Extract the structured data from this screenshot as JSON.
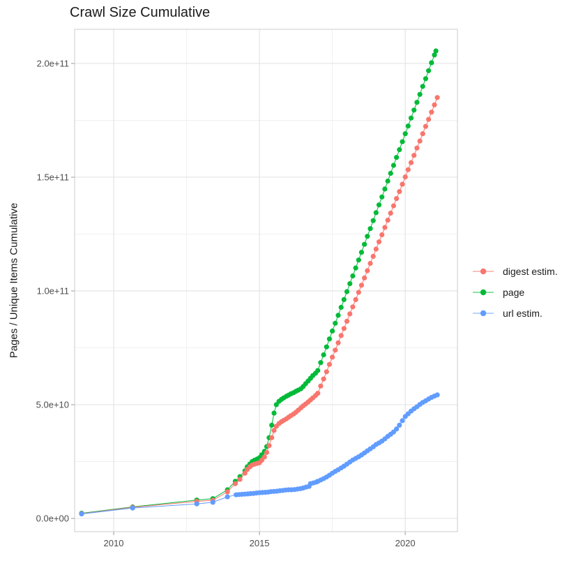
{
  "title": "Crawl Size Cumulative",
  "legend": {
    "items": [
      {
        "label": "digest estim.",
        "color": "#F8766D"
      },
      {
        "label": "page",
        "color": "#00BA38"
      },
      {
        "label": "url estim.",
        "color": "#619CFF"
      }
    ]
  },
  "axes": {
    "y": {
      "label": "Pages / Unique Items Cumulative",
      "ticks": [
        {
          "label": "0.0e+00",
          "value_billions": 0
        },
        {
          "label": "5.0e+10",
          "value_billions": 50
        },
        {
          "label": "1.0e+11",
          "value_billions": 100
        },
        {
          "label": "1.5e+11",
          "value_billions": 150
        },
        {
          "label": "2.0e+11",
          "value_billions": 200
        }
      ],
      "minor_billions": [
        25,
        75,
        125,
        175
      ]
    },
    "x": {
      "ticks": [
        {
          "label": "2010",
          "value": 2010
        },
        {
          "label": "2015",
          "value": 2015
        },
        {
          "label": "2020",
          "value": 2020
        }
      ],
      "minor_values": [
        2012.5,
        2017.5
      ]
    }
  },
  "style": {
    "grid_major_color": "#e4e4e4",
    "grid_minor_color": "#ededed",
    "panel_border_color": "#cccccc",
    "tick_mark_color": "#b3b3b3",
    "background": "#ffffff"
  },
  "chart_data": {
    "type": "line",
    "title": "Crawl Size Cumulative",
    "xlabel": "",
    "ylabel": "Pages / Unique Items Cumulative",
    "unit": "billions of pages / unique items (1e9)",
    "xlim": [
      2008.66,
      2021.79
    ],
    "ylim_billions": [
      -5.8,
      215.0
    ],
    "grid": true,
    "legend_position": "right",
    "series": [
      {
        "name": "page",
        "color": "#00BA38",
        "points": [
          [
            2008.9,
            2.3
          ],
          [
            2010.65,
            5.1
          ],
          [
            2012.85,
            8.1
          ],
          [
            2013.4,
            8.7
          ],
          [
            2013.9,
            12.6
          ],
          [
            2014.17,
            16.3
          ],
          [
            2014.33,
            18.4
          ],
          [
            2014.5,
            20.9
          ],
          [
            2014.58,
            22.7
          ],
          [
            2014.67,
            23.9
          ],
          [
            2014.75,
            25.0
          ],
          [
            2014.83,
            25.6
          ],
          [
            2014.92,
            26.1
          ],
          [
            2015.0,
            26.7
          ],
          [
            2015.08,
            28.0
          ],
          [
            2015.17,
            29.5
          ],
          [
            2015.25,
            31.6
          ],
          [
            2015.33,
            35.5
          ],
          [
            2015.42,
            41.0
          ],
          [
            2015.5,
            46.3
          ],
          [
            2015.58,
            50.0
          ],
          [
            2015.67,
            51.5
          ],
          [
            2015.75,
            52.3
          ],
          [
            2015.83,
            53.0
          ],
          [
            2015.92,
            53.7
          ],
          [
            2016.0,
            54.2
          ],
          [
            2016.08,
            54.8
          ],
          [
            2016.17,
            55.3
          ],
          [
            2016.25,
            55.9
          ],
          [
            2016.33,
            56.4
          ],
          [
            2016.42,
            57.0
          ],
          [
            2016.5,
            58.0
          ],
          [
            2016.58,
            59.2
          ],
          [
            2016.67,
            60.4
          ],
          [
            2016.75,
            61.6
          ],
          [
            2016.83,
            62.8
          ],
          [
            2016.92,
            63.8
          ],
          [
            2017.0,
            65.0
          ],
          [
            2017.1,
            68.5
          ],
          [
            2017.2,
            71.9
          ],
          [
            2017.3,
            75.4
          ],
          [
            2017.4,
            78.9
          ],
          [
            2017.5,
            82.4
          ],
          [
            2017.6,
            85.8
          ],
          [
            2017.7,
            89.3
          ],
          [
            2017.8,
            92.8
          ],
          [
            2017.9,
            96.2
          ],
          [
            2018.0,
            99.7
          ],
          [
            2018.1,
            103.2
          ],
          [
            2018.2,
            106.6
          ],
          [
            2018.3,
            110.1
          ],
          [
            2018.4,
            113.6
          ],
          [
            2018.5,
            117.0
          ],
          [
            2018.6,
            120.5
          ],
          [
            2018.7,
            124.0
          ],
          [
            2018.8,
            127.4
          ],
          [
            2018.9,
            130.9
          ],
          [
            2019.0,
            134.4
          ],
          [
            2019.1,
            137.8
          ],
          [
            2019.2,
            141.3
          ],
          [
            2019.3,
            144.8
          ],
          [
            2019.4,
            148.3
          ],
          [
            2019.5,
            151.7
          ],
          [
            2019.6,
            155.2
          ],
          [
            2019.7,
            158.7
          ],
          [
            2019.8,
            162.1
          ],
          [
            2019.9,
            165.6
          ],
          [
            2020.0,
            169.1
          ],
          [
            2020.1,
            172.5
          ],
          [
            2020.2,
            176.0
          ],
          [
            2020.3,
            179.5
          ],
          [
            2020.4,
            182.9
          ],
          [
            2020.5,
            186.4
          ],
          [
            2020.6,
            189.9
          ],
          [
            2020.7,
            193.3
          ],
          [
            2020.8,
            196.8
          ],
          [
            2020.9,
            200.3
          ],
          [
            2021.0,
            203.7
          ],
          [
            2021.05,
            205.5
          ]
        ]
      },
      {
        "name": "digest estim.",
        "color": "#F8766D",
        "points": [
          [
            2008.9,
            2.1
          ],
          [
            2010.65,
            4.9
          ],
          [
            2012.85,
            7.5
          ],
          [
            2013.4,
            8.0
          ],
          [
            2013.9,
            11.7
          ],
          [
            2014.17,
            15.3
          ],
          [
            2014.33,
            17.2
          ],
          [
            2014.5,
            19.9
          ],
          [
            2014.58,
            21.5
          ],
          [
            2014.67,
            22.7
          ],
          [
            2014.75,
            23.5
          ],
          [
            2014.83,
            23.9
          ],
          [
            2014.92,
            24.2
          ],
          [
            2015.0,
            24.5
          ],
          [
            2015.08,
            25.6
          ],
          [
            2015.17,
            27.0
          ],
          [
            2015.25,
            29.0
          ],
          [
            2015.33,
            32.0
          ],
          [
            2015.42,
            35.5
          ],
          [
            2015.5,
            38.7
          ],
          [
            2015.58,
            40.5
          ],
          [
            2015.67,
            41.7
          ],
          [
            2015.75,
            42.5
          ],
          [
            2015.83,
            43.1
          ],
          [
            2015.92,
            43.8
          ],
          [
            2016.0,
            44.5
          ],
          [
            2016.08,
            45.2
          ],
          [
            2016.17,
            45.9
          ],
          [
            2016.25,
            46.7
          ],
          [
            2016.33,
            47.6
          ],
          [
            2016.42,
            48.6
          ],
          [
            2016.5,
            49.5
          ],
          [
            2016.58,
            50.3
          ],
          [
            2016.67,
            51.2
          ],
          [
            2016.75,
            52.1
          ],
          [
            2016.83,
            53.0
          ],
          [
            2016.92,
            54.0
          ],
          [
            2017.0,
            55.0
          ],
          [
            2017.1,
            58.2
          ],
          [
            2017.2,
            61.3
          ],
          [
            2017.3,
            64.5
          ],
          [
            2017.4,
            67.7
          ],
          [
            2017.5,
            70.9
          ],
          [
            2017.6,
            74.0
          ],
          [
            2017.7,
            77.2
          ],
          [
            2017.8,
            80.4
          ],
          [
            2017.9,
            83.5
          ],
          [
            2018.0,
            86.7
          ],
          [
            2018.1,
            89.9
          ],
          [
            2018.2,
            93.0
          ],
          [
            2018.3,
            96.2
          ],
          [
            2018.4,
            99.4
          ],
          [
            2018.5,
            102.5
          ],
          [
            2018.6,
            105.7
          ],
          [
            2018.7,
            108.9
          ],
          [
            2018.8,
            112.1
          ],
          [
            2018.9,
            115.2
          ],
          [
            2019.0,
            118.4
          ],
          [
            2019.1,
            121.6
          ],
          [
            2019.2,
            124.7
          ],
          [
            2019.3,
            127.9
          ],
          [
            2019.4,
            131.1
          ],
          [
            2019.5,
            134.2
          ],
          [
            2019.6,
            137.4
          ],
          [
            2019.7,
            140.6
          ],
          [
            2019.8,
            143.7
          ],
          [
            2019.9,
            146.9
          ],
          [
            2020.0,
            150.1
          ],
          [
            2020.1,
            153.3
          ],
          [
            2020.2,
            156.4
          ],
          [
            2020.3,
            159.6
          ],
          [
            2020.4,
            162.8
          ],
          [
            2020.5,
            165.9
          ],
          [
            2020.6,
            169.1
          ],
          [
            2020.7,
            172.3
          ],
          [
            2020.8,
            175.4
          ],
          [
            2020.9,
            178.6
          ],
          [
            2021.0,
            181.8
          ],
          [
            2021.1,
            185.0
          ]
        ]
      },
      {
        "name": "url estim.",
        "color": "#619CFF",
        "points": [
          [
            2008.9,
            2.0
          ],
          [
            2010.65,
            4.6
          ],
          [
            2012.85,
            6.4
          ],
          [
            2013.4,
            7.1
          ],
          [
            2013.9,
            9.5
          ],
          [
            2014.2,
            10.4
          ],
          [
            2014.3,
            10.5
          ],
          [
            2014.4,
            10.6
          ],
          [
            2014.5,
            10.7
          ],
          [
            2014.6,
            10.8
          ],
          [
            2014.7,
            10.9
          ],
          [
            2014.8,
            11.0
          ],
          [
            2014.9,
            11.2
          ],
          [
            2015.0,
            11.3
          ],
          [
            2015.1,
            11.4
          ],
          [
            2015.2,
            11.5
          ],
          [
            2015.3,
            11.6
          ],
          [
            2015.4,
            11.8
          ],
          [
            2015.5,
            11.9
          ],
          [
            2015.6,
            12.0
          ],
          [
            2015.7,
            12.2
          ],
          [
            2015.8,
            12.3
          ],
          [
            2015.9,
            12.5
          ],
          [
            2016.0,
            12.6
          ],
          [
            2016.1,
            12.6
          ],
          [
            2016.2,
            12.7
          ],
          [
            2016.3,
            12.9
          ],
          [
            2016.4,
            13.1
          ],
          [
            2016.5,
            13.4
          ],
          [
            2016.6,
            13.8
          ],
          [
            2016.7,
            14.1
          ],
          [
            2016.75,
            15.3
          ],
          [
            2016.85,
            15.6
          ],
          [
            2016.95,
            16.0
          ],
          [
            2017.0,
            16.3
          ],
          [
            2017.1,
            16.9
          ],
          [
            2017.2,
            17.5
          ],
          [
            2017.3,
            18.2
          ],
          [
            2017.4,
            19.0
          ],
          [
            2017.5,
            19.9
          ],
          [
            2017.6,
            20.7
          ],
          [
            2017.7,
            21.4
          ],
          [
            2017.8,
            22.2
          ],
          [
            2017.9,
            23.0
          ],
          [
            2018.0,
            23.9
          ],
          [
            2018.1,
            24.8
          ],
          [
            2018.2,
            25.7
          ],
          [
            2018.3,
            26.4
          ],
          [
            2018.4,
            27.1
          ],
          [
            2018.5,
            27.9
          ],
          [
            2018.6,
            28.8
          ],
          [
            2018.7,
            29.7
          ],
          [
            2018.8,
            30.6
          ],
          [
            2018.9,
            31.5
          ],
          [
            2019.0,
            32.5
          ],
          [
            2019.1,
            33.2
          ],
          [
            2019.2,
            34.0
          ],
          [
            2019.3,
            35.0
          ],
          [
            2019.4,
            36.1
          ],
          [
            2019.5,
            37.0
          ],
          [
            2019.6,
            38.0
          ],
          [
            2019.7,
            39.3
          ],
          [
            2019.8,
            41.0
          ],
          [
            2019.9,
            43.0
          ],
          [
            2020.0,
            44.8
          ],
          [
            2020.1,
            46.0
          ],
          [
            2020.2,
            47.2
          ],
          [
            2020.3,
            48.2
          ],
          [
            2020.4,
            49.1
          ],
          [
            2020.5,
            50.1
          ],
          [
            2020.6,
            51.0
          ],
          [
            2020.7,
            51.7
          ],
          [
            2020.8,
            52.5
          ],
          [
            2020.9,
            53.2
          ],
          [
            2021.0,
            53.8
          ],
          [
            2021.1,
            54.3
          ]
        ]
      }
    ]
  }
}
